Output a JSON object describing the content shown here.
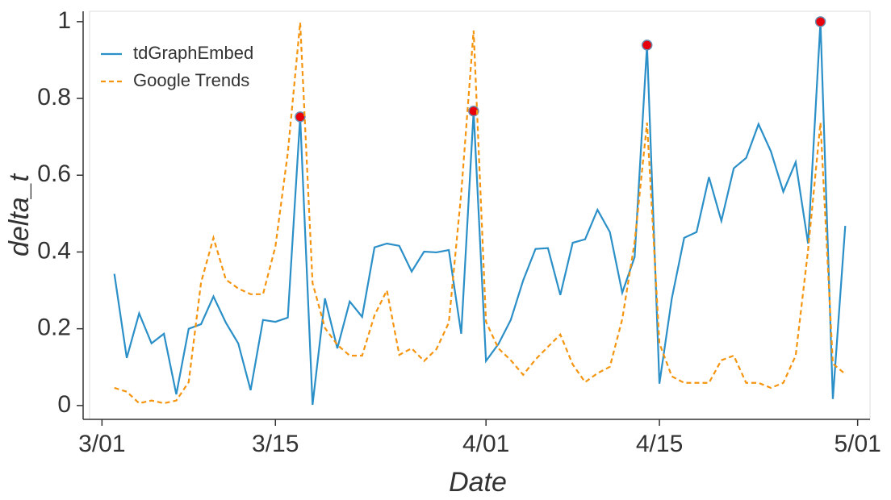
{
  "chart_data": {
    "type": "line",
    "xlabel": "Date",
    "ylabel": "delta_t",
    "x": [
      "3/02",
      "3/03",
      "3/04",
      "3/05",
      "3/06",
      "3/07",
      "3/08",
      "3/09",
      "3/10",
      "3/11",
      "3/12",
      "3/13",
      "3/14",
      "3/15",
      "3/16",
      "3/17",
      "3/18",
      "3/19",
      "3/20",
      "3/21",
      "3/22",
      "3/23",
      "3/24",
      "3/25",
      "3/26",
      "3/27",
      "3/28",
      "3/29",
      "3/30",
      "3/31",
      "4/01",
      "4/02",
      "4/03",
      "4/04",
      "4/05",
      "4/06",
      "4/07",
      "4/08",
      "4/09",
      "4/10",
      "4/11",
      "4/12",
      "4/13",
      "4/14",
      "4/15",
      "4/16",
      "4/17",
      "4/18",
      "4/19",
      "4/20",
      "4/21",
      "4/22",
      "4/23",
      "4/24",
      "4/25",
      "4/26",
      "4/27",
      "4/28",
      "4/29",
      "4/30"
    ],
    "series": [
      {
        "name": "tdGraphEmbed",
        "color": "#2b8fc8",
        "dash": "solid",
        "values": [
          0.343,
          0.124,
          0.24,
          0.162,
          0.187,
          0.029,
          0.2,
          0.212,
          0.284,
          0.216,
          0.162,
          0.04,
          0.223,
          0.218,
          0.229,
          0.752,
          0.002,
          0.279,
          0.149,
          0.271,
          0.231,
          0.412,
          0.422,
          0.416,
          0.349,
          0.401,
          0.399,
          0.405,
          0.187,
          0.767,
          0.116,
          0.16,
          0.223,
          0.326,
          0.408,
          0.41,
          0.288,
          0.424,
          0.433,
          0.51,
          0.452,
          0.294,
          0.387,
          0.939,
          0.057,
          0.279,
          0.437,
          0.452,
          0.595,
          0.481,
          0.618,
          0.645,
          0.733,
          0.662,
          0.557,
          0.634,
          0.422,
          1.0,
          0.017,
          0.468
        ],
        "markers": {
          "color": "#e8000b",
          "indices": [
            15,
            29,
            43,
            57
          ]
        }
      },
      {
        "name": "Google Trends",
        "color": "#f5950f",
        "dash": "dashed",
        "values": [
          0.046,
          0.036,
          0.006,
          0.013,
          0.006,
          0.013,
          0.061,
          0.321,
          0.437,
          0.328,
          0.305,
          0.29,
          0.29,
          0.414,
          0.658,
          0.998,
          0.319,
          0.202,
          0.158,
          0.13,
          0.13,
          0.235,
          0.3,
          0.132,
          0.149,
          0.116,
          0.147,
          0.216,
          0.553,
          0.977,
          0.218,
          0.149,
          0.118,
          0.08,
          0.12,
          0.153,
          0.185,
          0.107,
          0.061,
          0.084,
          0.101,
          0.225,
          0.426,
          0.737,
          0.162,
          0.076,
          0.059,
          0.059,
          0.059,
          0.118,
          0.13,
          0.059,
          0.059,
          0.046,
          0.059,
          0.13,
          0.405,
          0.737,
          0.109,
          0.082
        ]
      }
    ],
    "xlim": [
      "2/28",
      "5/02"
    ],
    "xticks": [
      "3/01",
      "3/15",
      "4/01",
      "4/15",
      "5/01"
    ],
    "ylim": [
      -0.036,
      1.027
    ],
    "yticks": [
      0,
      0.2,
      0.4,
      0.6,
      0.8,
      1
    ],
    "legend": "upper left",
    "grid": false
  }
}
